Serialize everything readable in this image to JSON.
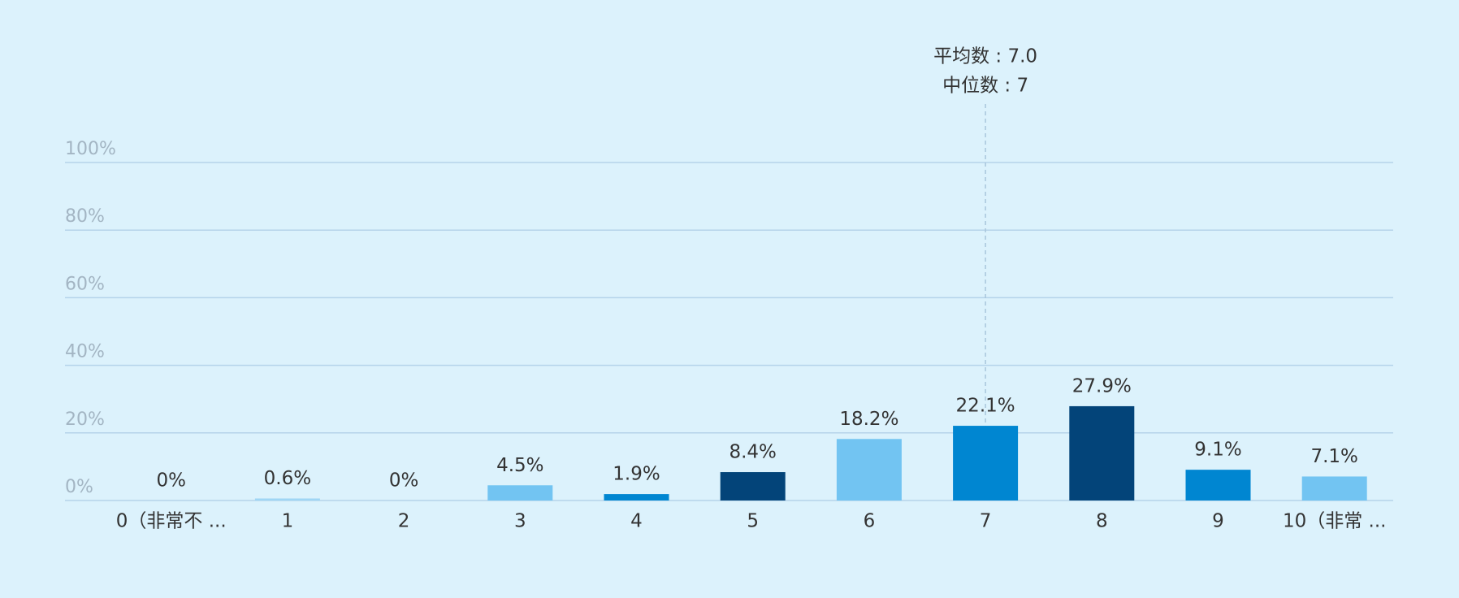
{
  "chart_data": {
    "type": "bar",
    "categories": [
      "0（非常不 ...",
      "1",
      "2",
      "3",
      "4",
      "5",
      "6",
      "7",
      "8",
      "9",
      "10（非常 ..."
    ],
    "values": [
      0,
      0.6,
      0,
      4.5,
      1.9,
      8.4,
      18.2,
      22.1,
      27.9,
      9.1,
      7.1
    ],
    "value_labels": [
      "0%",
      "0.6%",
      "0%",
      "4.5%",
      "1.9%",
      "8.4%",
      "18.2%",
      "22.1%",
      "27.9%",
      "9.1%",
      "7.1%"
    ],
    "colors": [
      "#72c4f2",
      "#9fd6f5",
      "#72c4f2",
      "#72c4f2",
      "#0086d1",
      "#034479",
      "#72c4f2",
      "#0086d1",
      "#034479",
      "#0086d1",
      "#72c4f2"
    ],
    "ylim": [
      0,
      100
    ],
    "yticks": [
      {
        "value": 0,
        "label": "0%"
      },
      {
        "value": 20,
        "label": "20%"
      },
      {
        "value": 40,
        "label": "40%"
      },
      {
        "value": 60,
        "label": "60%"
      },
      {
        "value": 80,
        "label": "80%"
      },
      {
        "value": 100,
        "label": "100%"
      }
    ],
    "grid": true,
    "mean": 7.0,
    "mean_label": "平均数 : 7.0",
    "median_label": "中位数 : 7"
  }
}
